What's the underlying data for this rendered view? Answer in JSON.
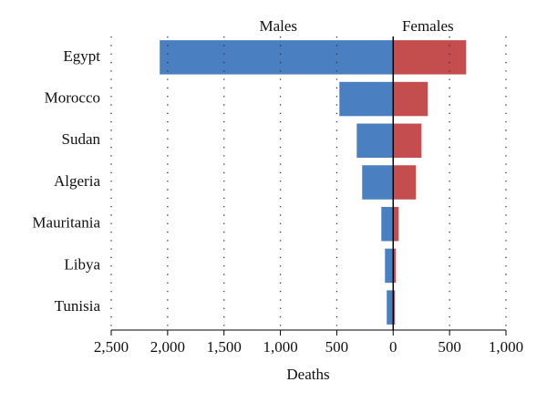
{
  "chart_data": {
    "type": "butterfly",
    "xlabel": "Deaths",
    "categories": [
      "Egypt",
      "Morocco",
      "Sudan",
      "Algeria",
      "Mauritania",
      "Libya",
      "Tunisia"
    ],
    "series": [
      {
        "name": "Males",
        "color": "#4a7fc1",
        "values": [
          -2070,
          -477,
          -323,
          -275,
          -105,
          -73,
          -57
        ]
      },
      {
        "name": "Females",
        "color": "#c44e4e",
        "values": [
          647,
          307,
          251,
          202,
          49,
          24,
          16
        ]
      }
    ],
    "xlim": [
      -2500,
      1000
    ],
    "xticks": [
      {
        "value": -2500,
        "label": "2,500"
      },
      {
        "value": -2000,
        "label": "2,000"
      },
      {
        "value": -1500,
        "label": "1,500"
      },
      {
        "value": -1000,
        "label": "1,000"
      },
      {
        "value": -500,
        "label": "500"
      },
      0,
      500,
      {
        "value": 1000,
        "label": "1,000"
      }
    ],
    "grid": true
  }
}
